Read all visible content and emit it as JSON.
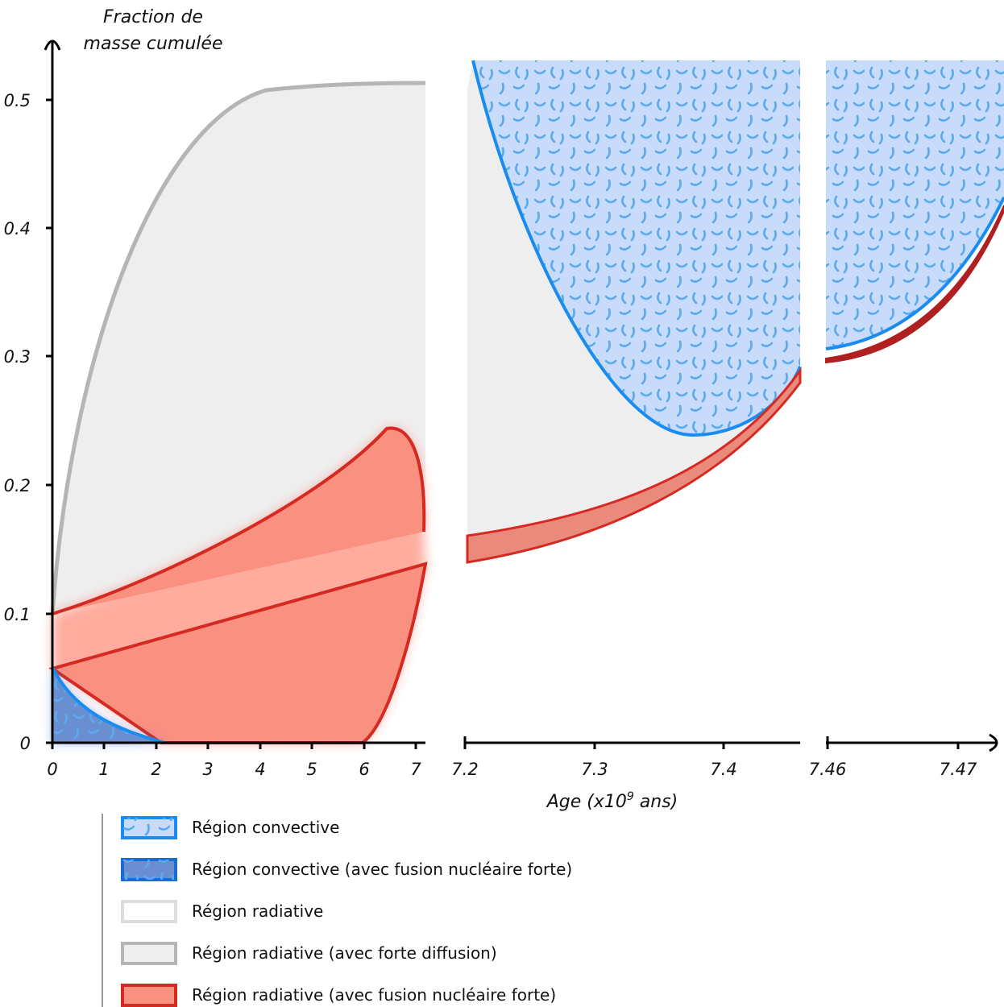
{
  "axes": {
    "y_title": [
      "Fraction de",
      "masse cumulée"
    ],
    "y_ticks": [
      "0",
      "0.1",
      "0.2",
      "0.3",
      "0.4",
      "0.5"
    ],
    "x_title": {
      "text": "Age (x10",
      "sup": "9",
      "after": " ans)"
    },
    "x_ticks": [
      [
        "0",
        "1",
        "2",
        "3",
        "4",
        "5",
        "6",
        "7"
      ],
      [
        "7.2",
        "7.3",
        "7.4"
      ],
      [
        "7.46",
        "7.47"
      ]
    ]
  },
  "legend": [
    "Région convective",
    "Région convective (avec fusion nucléaire forte)",
    "Région radiative",
    "Région radiative (avec forte diffusion)",
    "Région radiative (avec fusion nucléaire forte)"
  ]
}
